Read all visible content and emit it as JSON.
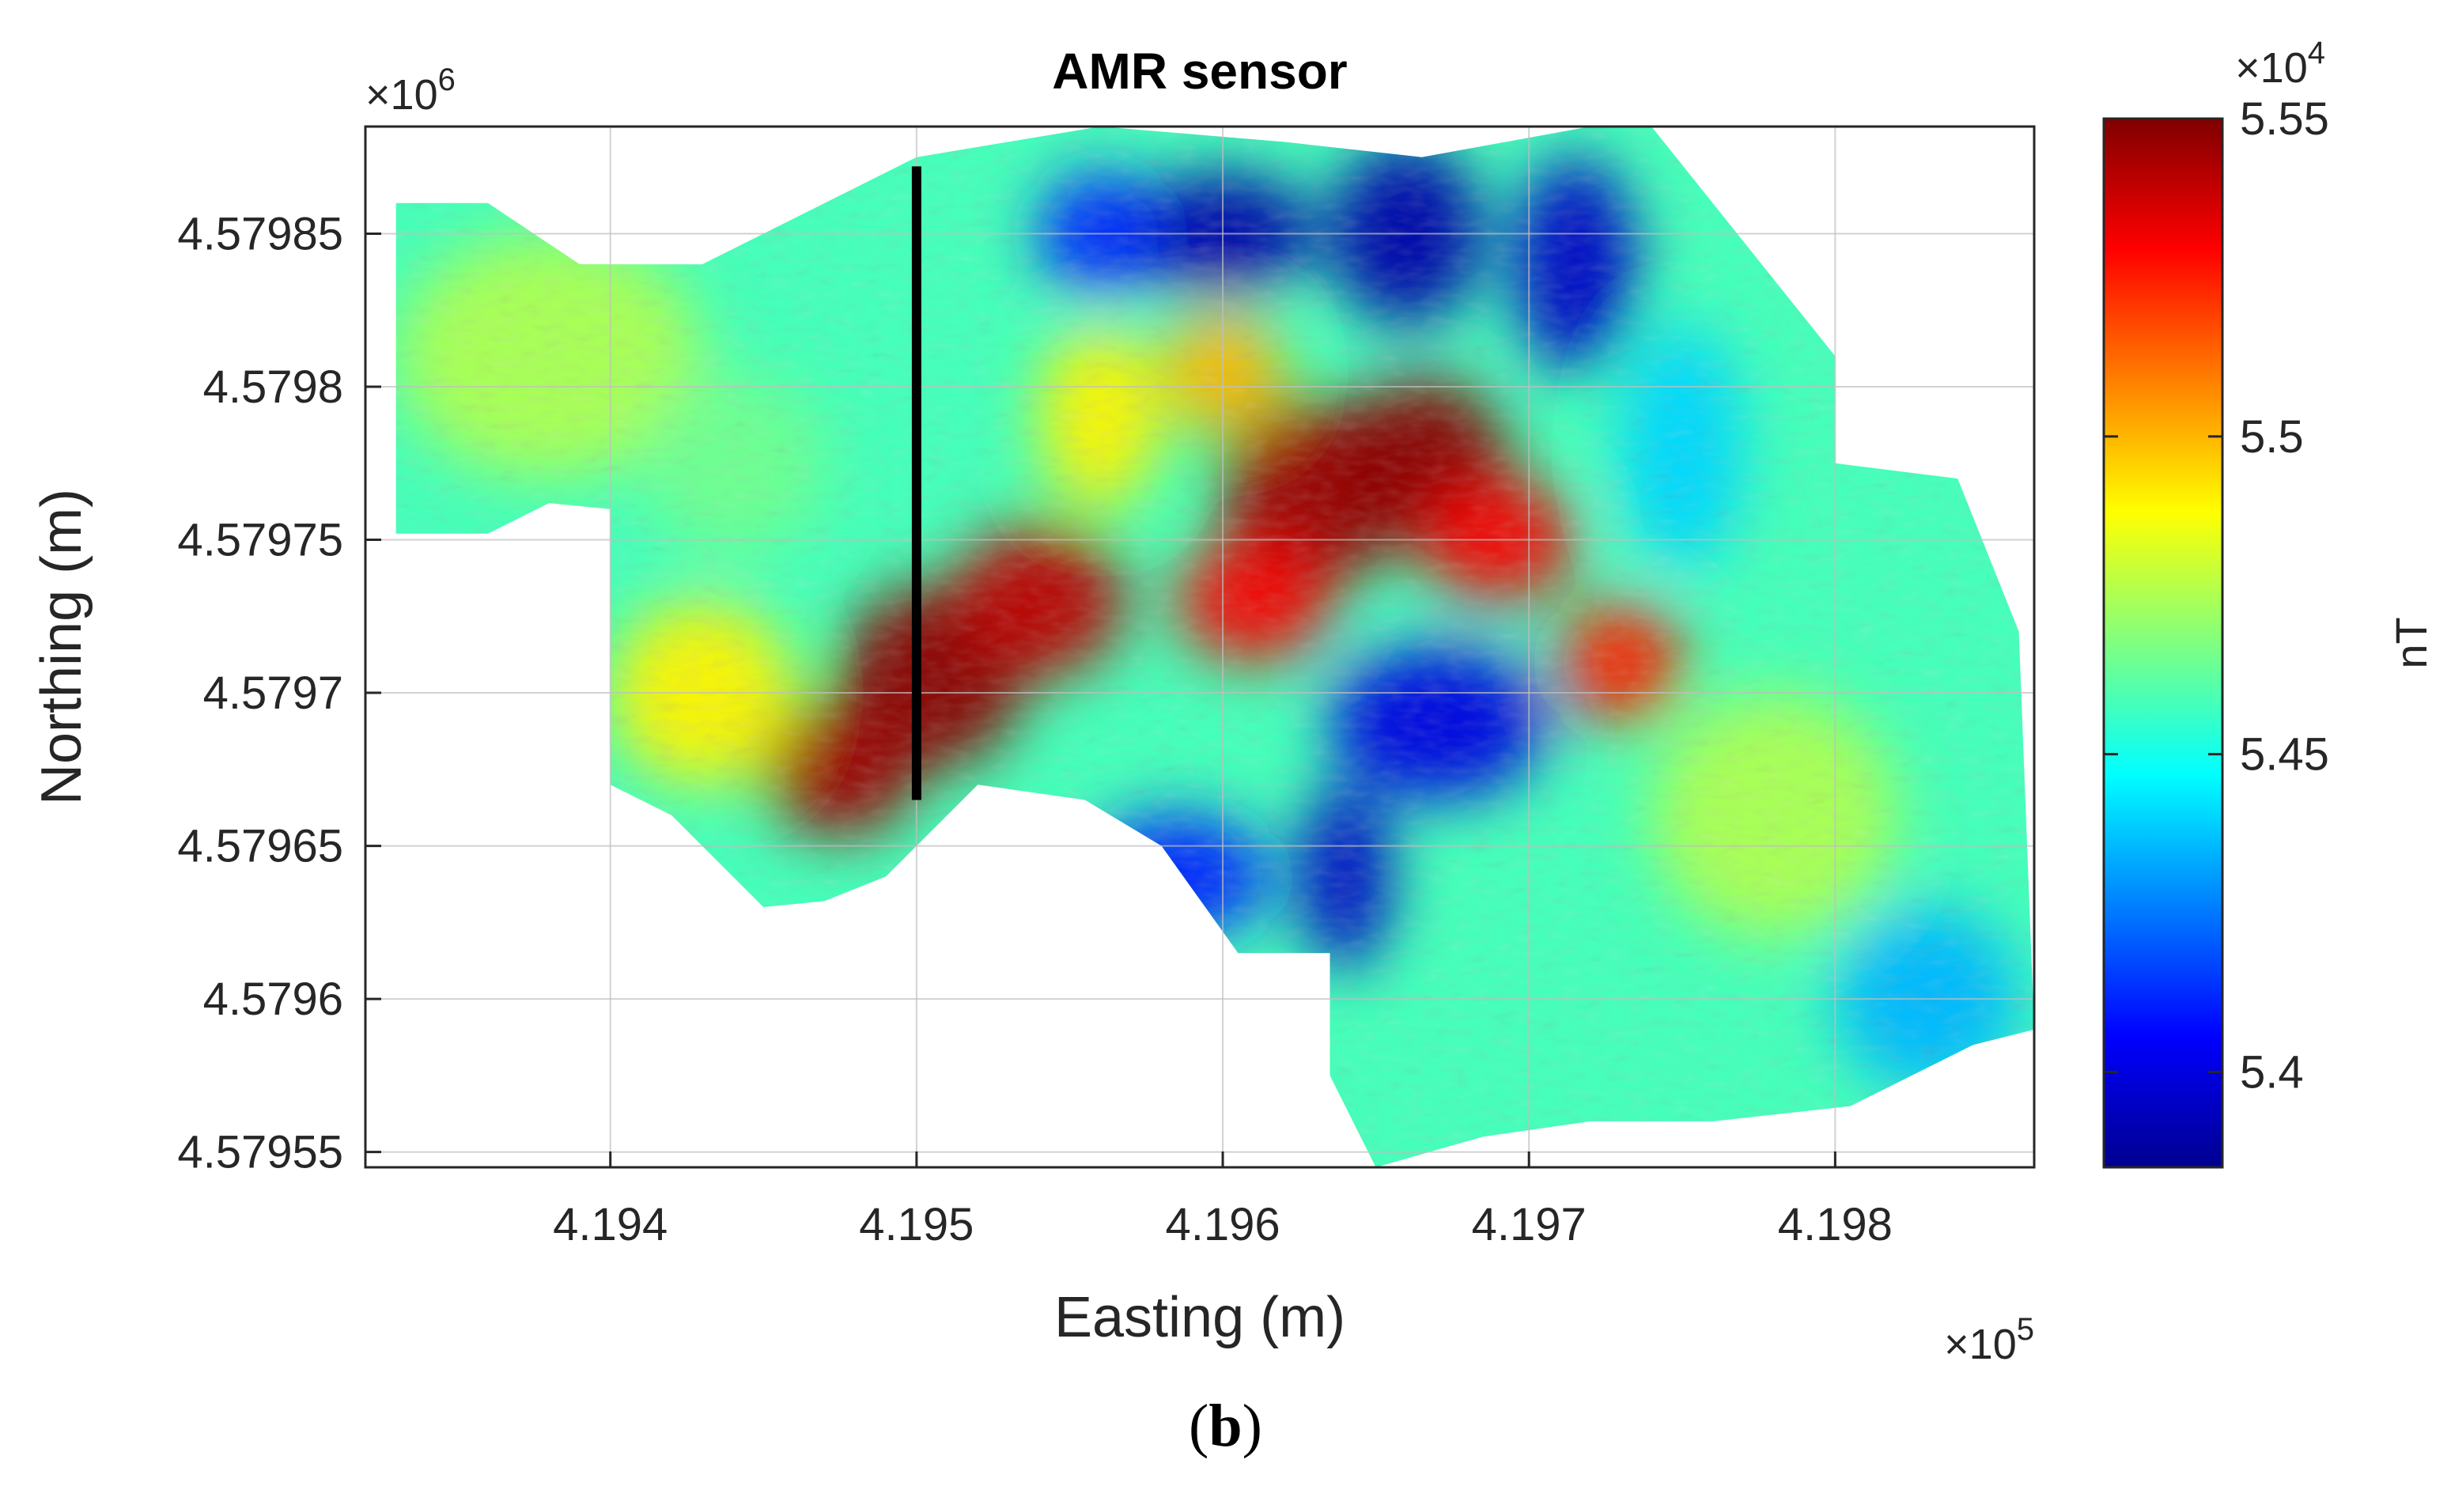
{
  "chart_data": {
    "type": "heatmap",
    "title": "AMR sensor",
    "xlabel": "Easting (m)",
    "ylabel": "Northing (m)",
    "x_exponent_label": "×10",
    "x_exponent_power": "5",
    "y_exponent_label": "×10",
    "y_exponent_power": "6",
    "xlim": [
      419.32,
      419.865
    ],
    "ylim": [
      4.579545,
      4.579885
    ],
    "x_ticks": [
      {
        "value": 419.4,
        "label": "4.194"
      },
      {
        "value": 419.5,
        "label": "4.195"
      },
      {
        "value": 419.6,
        "label": "4.196"
      },
      {
        "value": 419.7,
        "label": "4.197"
      },
      {
        "value": 419.8,
        "label": "4.198"
      }
    ],
    "y_ticks": [
      {
        "value": 4.57955,
        "label": "4.57955"
      },
      {
        "value": 4.5796,
        "label": "4.5796"
      },
      {
        "value": 4.57965,
        "label": "4.57965"
      },
      {
        "value": 4.5797,
        "label": "4.5797"
      },
      {
        "value": 4.57975,
        "label": "4.57975"
      },
      {
        "value": 4.5798,
        "label": "4.5798"
      },
      {
        "value": 4.57985,
        "label": "4.57985"
      }
    ],
    "grid": true,
    "colorbar": {
      "label": "nT",
      "exponent_label": "×10",
      "exponent_power": "4",
      "clim": [
        5.385,
        5.55
      ],
      "ticks": [
        {
          "value": 5.4,
          "label": "5.4"
        },
        {
          "value": 5.45,
          "label": "5.45"
        },
        {
          "value": 5.5,
          "label": "5.5"
        },
        {
          "value": 5.55,
          "label": "5.55"
        }
      ],
      "colormap": [
        "#00008f",
        "#0000ff",
        "#0080ff",
        "#00ffff",
        "#80ff80",
        "#ffff00",
        "#ff8000",
        "#ff0000",
        "#800000"
      ]
    },
    "survey_boundary": [
      [
        419.33,
        4.57986
      ],
      [
        419.36,
        4.57986
      ],
      [
        419.39,
        4.57984
      ],
      [
        419.43,
        4.57984
      ],
      [
        419.46,
        4.579855
      ],
      [
        419.5,
        4.579875
      ],
      [
        419.56,
        4.579885
      ],
      [
        419.62,
        4.57988
      ],
      [
        419.665,
        4.579875
      ],
      [
        419.72,
        4.579885
      ],
      [
        419.74,
        4.579885
      ],
      [
        419.8,
        4.57981
      ],
      [
        419.8,
        4.579775
      ],
      [
        419.84,
        4.57977
      ],
      [
        419.86,
        4.57972
      ],
      [
        419.865,
        4.57959
      ],
      [
        419.845,
        4.579585
      ],
      [
        419.805,
        4.579565
      ],
      [
        419.76,
        4.57956
      ],
      [
        419.72,
        4.57956
      ],
      [
        419.685,
        4.579555
      ],
      [
        419.65,
        4.579545
      ],
      [
        419.635,
        4.579575
      ],
      [
        419.635,
        4.579615
      ],
      [
        419.605,
        4.579615
      ],
      [
        419.58,
        4.57965
      ],
      [
        419.555,
        4.579665
      ],
      [
        419.52,
        4.57967
      ],
      [
        419.49,
        4.57964
      ],
      [
        419.47,
        4.579632
      ],
      [
        419.45,
        4.57963
      ],
      [
        419.42,
        4.57966
      ],
      [
        419.4,
        4.57967
      ],
      [
        419.4,
        4.57976
      ],
      [
        419.38,
        4.579762
      ],
      [
        419.36,
        4.579752
      ],
      [
        419.33,
        4.579752
      ]
    ],
    "anomalies": [
      {
        "x": 419.505,
        "y": 4.579705,
        "rx": 0.03,
        "ry": 3e-05,
        "value": 5.548
      },
      {
        "x": 419.475,
        "y": 4.579675,
        "rx": 0.025,
        "ry": 2.2e-05,
        "value": 5.545
      },
      {
        "x": 419.54,
        "y": 4.57973,
        "rx": 0.028,
        "ry": 2.5e-05,
        "value": 5.54
      },
      {
        "x": 419.63,
        "y": 4.579765,
        "rx": 0.03,
        "ry": 3e-05,
        "value": 5.545
      },
      {
        "x": 419.665,
        "y": 4.579775,
        "rx": 0.028,
        "ry": 2.8e-05,
        "value": 5.548
      },
      {
        "x": 419.69,
        "y": 4.57975,
        "rx": 0.025,
        "ry": 2e-05,
        "value": 5.53
      },
      {
        "x": 419.73,
        "y": 4.57971,
        "rx": 0.02,
        "ry": 2e-05,
        "value": 5.525
      },
      {
        "x": 419.61,
        "y": 4.57973,
        "rx": 0.025,
        "ry": 2e-05,
        "value": 5.53
      },
      {
        "x": 419.6,
        "y": 4.57985,
        "rx": 0.03,
        "ry": 2e-05,
        "value": 5.39
      },
      {
        "x": 419.66,
        "y": 4.57985,
        "rx": 0.025,
        "ry": 3e-05,
        "value": 5.39
      },
      {
        "x": 419.715,
        "y": 4.57984,
        "rx": 0.02,
        "ry": 3.5e-05,
        "value": 5.395
      },
      {
        "x": 419.67,
        "y": 4.57969,
        "rx": 0.035,
        "ry": 2.5e-05,
        "value": 5.4
      },
      {
        "x": 419.585,
        "y": 4.57964,
        "rx": 0.03,
        "ry": 2e-05,
        "value": 5.41
      },
      {
        "x": 419.64,
        "y": 4.57964,
        "rx": 0.015,
        "ry": 3e-05,
        "value": 5.395
      },
      {
        "x": 419.56,
        "y": 4.57985,
        "rx": 0.02,
        "ry": 2e-05,
        "value": 5.41
      },
      {
        "x": 419.75,
        "y": 4.57978,
        "rx": 0.02,
        "ry": 4e-05,
        "value": 5.44
      },
      {
        "x": 419.78,
        "y": 4.57966,
        "rx": 0.04,
        "ry": 4e-05,
        "value": 5.475
      },
      {
        "x": 419.38,
        "y": 4.57981,
        "rx": 0.05,
        "ry": 4e-05,
        "value": 5.475
      },
      {
        "x": 419.44,
        "y": 4.579775,
        "rx": 0.03,
        "ry": 3e-05,
        "value": 5.465
      },
      {
        "x": 419.43,
        "y": 4.5797,
        "rx": 0.03,
        "ry": 3e-05,
        "value": 5.49
      },
      {
        "x": 419.83,
        "y": 4.5796,
        "rx": 0.03,
        "ry": 3e-05,
        "value": 5.435
      },
      {
        "x": 419.56,
        "y": 4.57979,
        "rx": 0.02,
        "ry": 3e-05,
        "value": 5.49
      },
      {
        "x": 419.6,
        "y": 4.579805,
        "rx": 0.02,
        "ry": 2e-05,
        "value": 5.5
      }
    ],
    "profile_line": {
      "x": [
        419.5,
        419.5
      ],
      "y": [
        4.579665,
        4.579872
      ]
    }
  },
  "panel_label": "b"
}
